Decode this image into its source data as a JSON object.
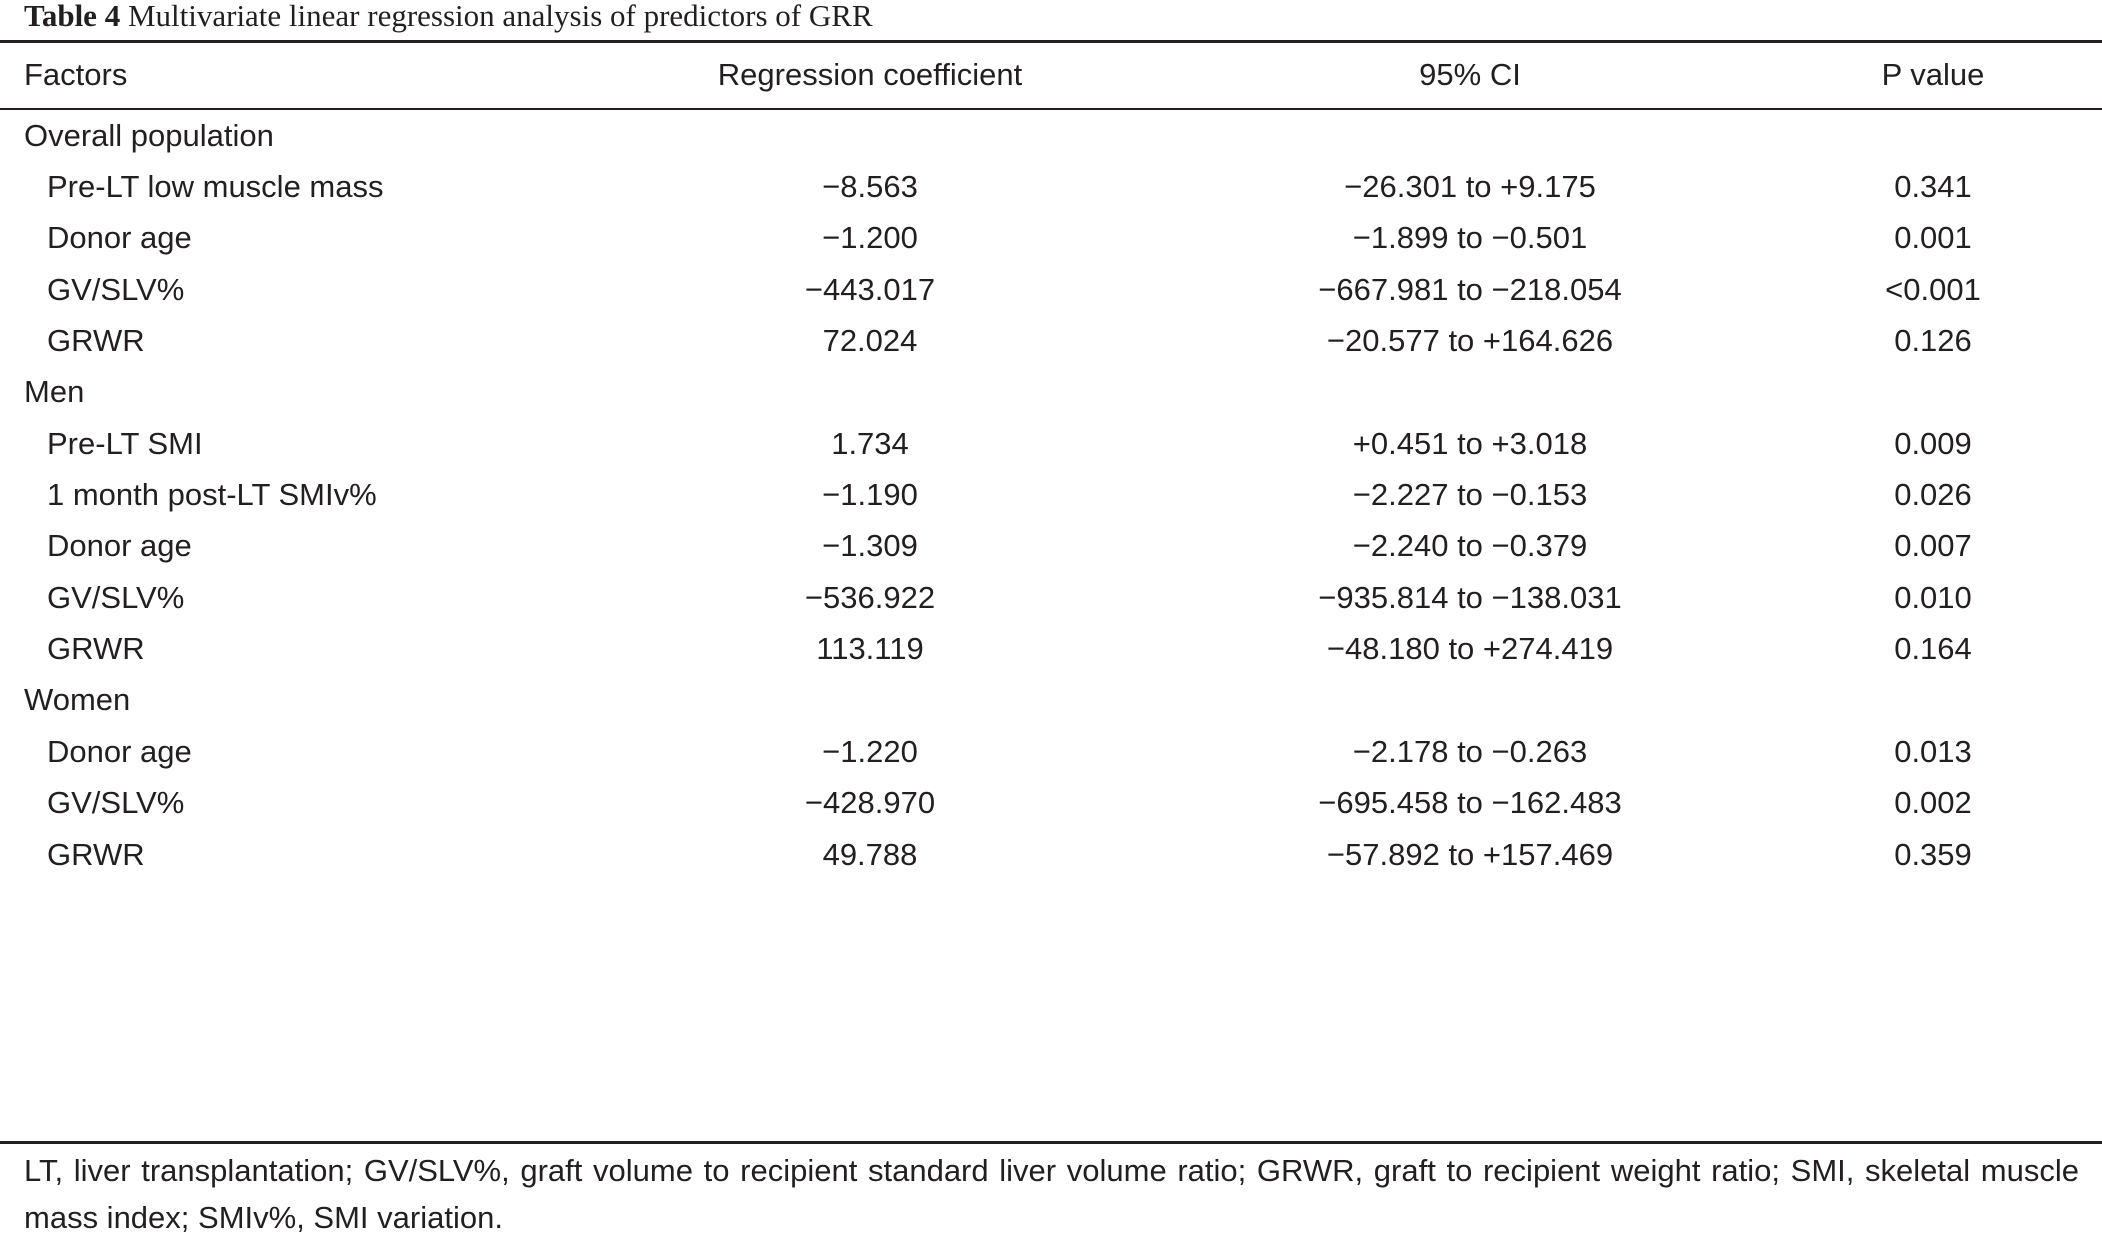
{
  "caption": {
    "label": "Table 4",
    "title": "Multivariate linear regression analysis of predictors of GRR"
  },
  "columns": [
    "Factors",
    "Regression coefficient",
    "95% CI",
    "P value"
  ],
  "rows": [
    {
      "type": "group",
      "factor": "Overall population"
    },
    {
      "type": "data",
      "factor": "Pre-LT low muscle mass",
      "coef": "−8.563",
      "ci": "−26.301 to +9.175",
      "p": "0.341"
    },
    {
      "type": "data",
      "factor": "Donor age",
      "coef": "−1.200",
      "ci": "−1.899 to −0.501",
      "p": "0.001"
    },
    {
      "type": "data",
      "factor": "GV/SLV%",
      "coef": "−443.017",
      "ci": "−667.981 to −218.054",
      "p": "<0.001"
    },
    {
      "type": "data",
      "factor": "GRWR",
      "coef": "72.024",
      "ci": "−20.577 to +164.626",
      "p": "0.126"
    },
    {
      "type": "group",
      "factor": "Men"
    },
    {
      "type": "data",
      "factor": "Pre-LT SMI",
      "coef": "1.734",
      "ci": "+0.451 to +3.018",
      "p": "0.009"
    },
    {
      "type": "data",
      "factor": "1 month post-LT SMIv%",
      "coef": "−1.190",
      "ci": "−2.227 to −0.153",
      "p": "0.026"
    },
    {
      "type": "data",
      "factor": "Donor age",
      "coef": "−1.309",
      "ci": "−2.240 to −0.379",
      "p": "0.007"
    },
    {
      "type": "data",
      "factor": "GV/SLV%",
      "coef": "−536.922",
      "ci": "−935.814 to −138.031",
      "p": "0.010"
    },
    {
      "type": "data",
      "factor": "GRWR",
      "coef": "113.119",
      "ci": "−48.180 to +274.419",
      "p": "0.164"
    },
    {
      "type": "group",
      "factor": "Women"
    },
    {
      "type": "data",
      "factor": "Donor age",
      "coef": "−1.220",
      "ci": "−2.178 to −0.263",
      "p": "0.013"
    },
    {
      "type": "data",
      "factor": "GV/SLV%",
      "coef": "−428.970",
      "ci": "−695.458 to −162.483",
      "p": "0.002"
    },
    {
      "type": "data",
      "factor": "GRWR",
      "coef": "49.788",
      "ci": "−57.892 to +157.469",
      "p": "0.359"
    }
  ],
  "footnote": "LT, liver transplantation; GV/SLV%, graft volume to recipient standard liver volume ratio; GRWR, graft to recipient weight ratio; SMI, skeletal muscle mass index; SMIv%, SMI variation."
}
